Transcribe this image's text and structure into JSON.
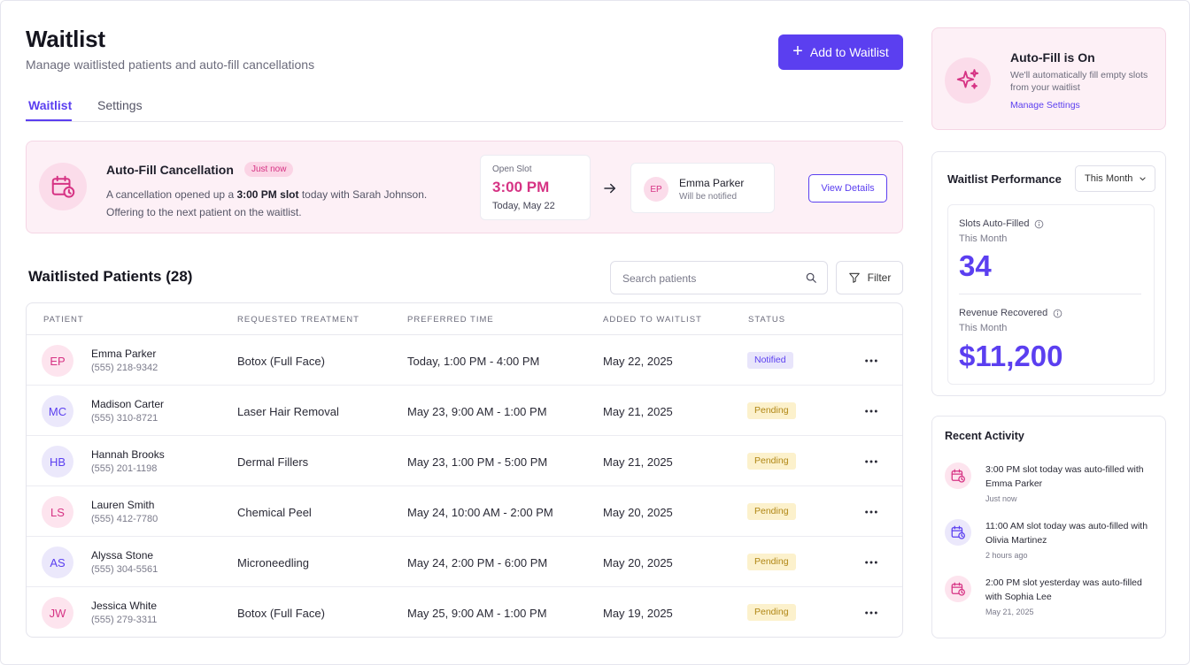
{
  "header": {
    "title": "Waitlist",
    "subtitle": "Manage waitlisted patients and auto-fill cancellations",
    "add_button": "Add to Waitlist"
  },
  "tabs": [
    {
      "label": "Waitlist",
      "active": true
    },
    {
      "label": "Settings",
      "active": false
    }
  ],
  "banner": {
    "title": "Auto-Fill Cancellation",
    "badge": "Just now",
    "desc_prefix": "A cancellation opened up a ",
    "desc_bold": "3:00 PM slot",
    "desc_suffix": " today with Sarah Johnson. Offering to the next patient on the waitlist.",
    "slot_label": "Open Slot",
    "slot_time": "3:00 PM",
    "slot_date": "Today, May 22",
    "next_initials": "EP",
    "next_name": "Emma Parker",
    "next_sub": "Will be notified",
    "view_button": "View Details"
  },
  "patients_section": {
    "title": "Waitlisted Patients (28)",
    "search_placeholder": "Search patients",
    "filter_label": "Filter",
    "columns": [
      "PATIENT",
      "REQUESTED TREATMENT",
      "PREFERRED TIME",
      "ADDED TO WAITLIST",
      "STATUS"
    ],
    "rows": [
      {
        "initials": "EP",
        "name": "Emma Parker",
        "phone": "(555) 218-9342",
        "treatment": "Botox (Full Face)",
        "time": "Today, 1:00 PM - 4:00 PM",
        "added": "May 22, 2025",
        "status": "Notified"
      },
      {
        "initials": "MC",
        "name": "Madison Carter",
        "phone": "(555) 310-8721",
        "treatment": "Laser Hair Removal",
        "time": "May 23, 9:00 AM - 1:00 PM",
        "added": "May 21, 2025",
        "status": "Pending"
      },
      {
        "initials": "HB",
        "name": "Hannah Brooks",
        "phone": "(555) 201-1198",
        "treatment": "Dermal Fillers",
        "time": "May 23, 1:00 PM - 5:00 PM",
        "added": "May 21, 2025",
        "status": "Pending"
      },
      {
        "initials": "LS",
        "name": "Lauren Smith",
        "phone": "(555) 412-7780",
        "treatment": "Chemical Peel",
        "time": "May 24, 10:00 AM - 2:00 PM",
        "added": "May 20, 2025",
        "status": "Pending"
      },
      {
        "initials": "AS",
        "name": "Alyssa Stone",
        "phone": "(555) 304-5561",
        "treatment": "Microneedling",
        "time": "May 24, 2:00 PM - 6:00 PM",
        "added": "May 20, 2025",
        "status": "Pending"
      },
      {
        "initials": "JW",
        "name": "Jessica White",
        "phone": "(555) 279-3311",
        "treatment": "Botox (Full Face)",
        "time": "May 25, 9:00 AM - 1:00 PM",
        "added": "May 19, 2025",
        "status": "Pending"
      }
    ]
  },
  "autofill_card": {
    "title": "Auto-Fill is On",
    "desc": "We'll automatically fill empty slots from your waitlist",
    "link": "Manage Settings"
  },
  "performance": {
    "title": "Waitlist Performance",
    "period": "This Month",
    "metric1_label": "Slots Auto-Filled",
    "metric1_sub": "This Month",
    "metric1_value": "34",
    "metric2_label": "Revenue Recovered",
    "metric2_sub": "This Month",
    "metric2_value": "$11,200"
  },
  "activity": {
    "title": "Recent Activity",
    "items": [
      {
        "text": "3:00 PM slot today was auto-filled with Emma Parker",
        "time": "Just now"
      },
      {
        "text": "11:00 AM slot today was auto-filled with Olivia Martinez",
        "time": "2 hours ago"
      },
      {
        "text": "2:00 PM slot yesterday was auto-filled with Sophia Lee",
        "time": "May 21, 2025"
      }
    ]
  },
  "colors": {
    "accent": "#5b3ff0",
    "pink": "#d63384",
    "pending": "#b08614"
  }
}
